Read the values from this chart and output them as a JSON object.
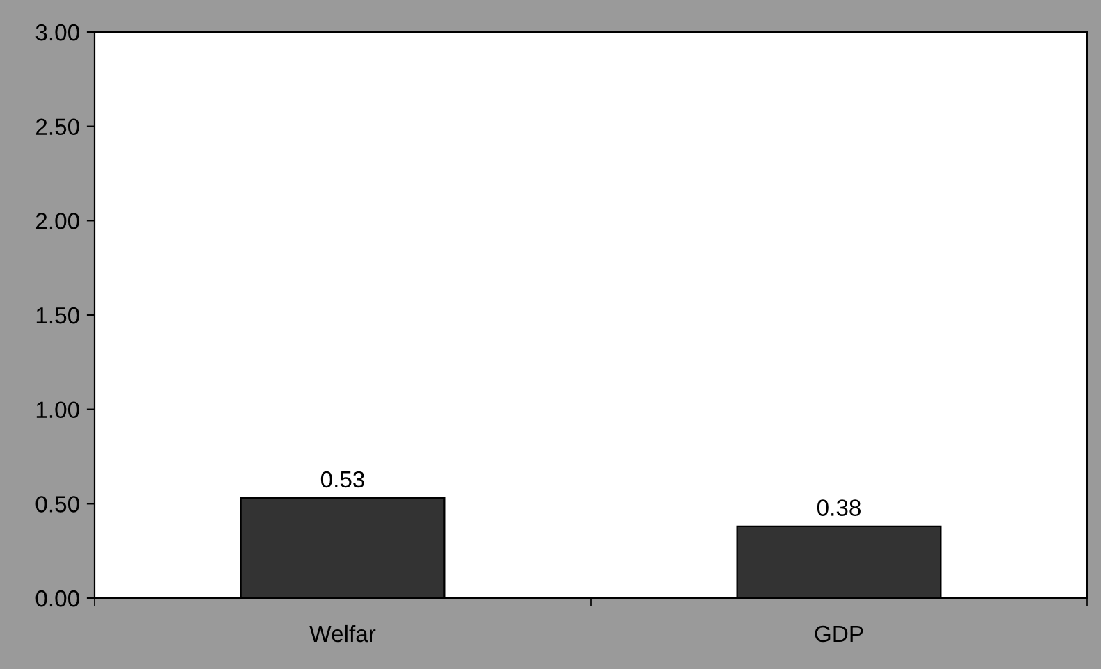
{
  "chart_data": {
    "type": "bar",
    "categories": [
      "Welfar",
      "GDP"
    ],
    "values": [
      0.53,
      0.38
    ],
    "color": "#333333",
    "ylim": [
      0,
      3
    ],
    "yticks": [
      {
        "value": 0,
        "label": "0.00"
      },
      {
        "value": 0.5,
        "label": "0.50"
      },
      {
        "value": 1,
        "label": "1.00"
      },
      {
        "value": 1.5,
        "label": "1.50"
      },
      {
        "value": 2,
        "label": "2.00"
      },
      {
        "value": 2.5,
        "label": "2.50"
      },
      {
        "value": 3,
        "label": "3.00"
      }
    ],
    "data_labels": true,
    "grid": false,
    "legend": false
  }
}
